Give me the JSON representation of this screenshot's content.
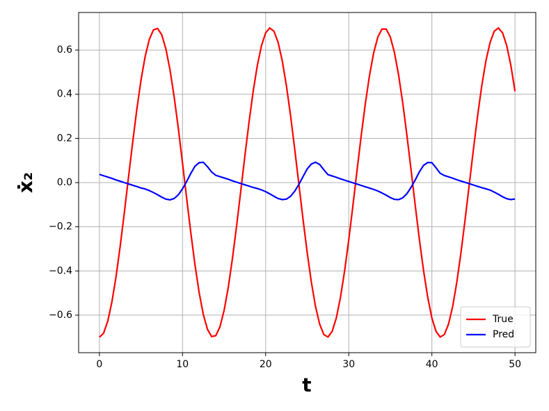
{
  "chart_data": {
    "type": "line",
    "xlabel": "t",
    "ylabel": "ẋ₂",
    "x": [
      0,
      0.5,
      1,
      1.5,
      2,
      2.5,
      3,
      3.5,
      4,
      4.5,
      5,
      5.5,
      6,
      6.5,
      7,
      7.5,
      8,
      8.5,
      9,
      9.5,
      10,
      10.5,
      11,
      11.5,
      12,
      12.5,
      13,
      13.5,
      14,
      14.5,
      15,
      15.5,
      16,
      16.5,
      17,
      17.5,
      18,
      18.5,
      19,
      19.5,
      20,
      20.5,
      21,
      21.5,
      22,
      22.5,
      23,
      23.5,
      24,
      24.5,
      25,
      25.5,
      26,
      26.5,
      27,
      27.5,
      28,
      28.5,
      29,
      29.5,
      30,
      30.5,
      31,
      31.5,
      32,
      32.5,
      33,
      33.5,
      34,
      34.5,
      35,
      35.5,
      36,
      36.5,
      37,
      37.5,
      38,
      38.5,
      39,
      39.5,
      40,
      40.5,
      41,
      41.5,
      42,
      42.5,
      43,
      43.5,
      44,
      44.5,
      45,
      45.5,
      46,
      46.5,
      47,
      47.5,
      48,
      48.5,
      49,
      49.5,
      50
    ],
    "series": [
      {
        "name": "True",
        "color": "#ff0000",
        "values": [
          -0.7,
          -0.682,
          -0.628,
          -0.541,
          -0.426,
          -0.288,
          -0.136,
          0.024,
          0.182,
          0.331,
          0.463,
          0.57,
          0.648,
          0.691,
          0.698,
          0.669,
          0.605,
          0.509,
          0.386,
          0.244,
          0.088,
          -0.072,
          -0.228,
          -0.373,
          -0.498,
          -0.597,
          -0.664,
          -0.697,
          -0.693,
          -0.653,
          -0.579,
          -0.475,
          -0.345,
          -0.198,
          -0.04,
          0.12,
          0.273,
          0.413,
          0.53,
          0.62,
          0.678,
          0.7,
          0.685,
          0.635,
          0.551,
          0.438,
          0.303,
          0.151,
          -0.008,
          -0.167,
          -0.317,
          -0.451,
          -0.561,
          -0.641,
          -0.688,
          -0.699,
          -0.674,
          -0.613,
          -0.52,
          -0.4,
          -0.259,
          -0.104,
          0.056,
          0.213,
          0.359,
          0.486,
          0.588,
          0.659,
          0.695,
          0.695,
          0.659,
          0.588,
          0.486,
          0.359,
          0.213,
          0.056,
          -0.104,
          -0.258,
          -0.399,
          -0.519,
          -0.613,
          -0.674,
          -0.699,
          -0.688,
          -0.641,
          -0.561,
          -0.451,
          -0.317,
          -0.167,
          -0.008,
          0.151,
          0.302,
          0.438,
          0.551,
          0.634,
          0.685,
          0.7,
          0.678,
          0.621,
          0.531,
          0.413
        ]
      },
      {
        "name": "Pred",
        "color": "#0000ff",
        "values": [
          0.037,
          0.031,
          0.025,
          0.019,
          0.012,
          0.006,
          0.0,
          -0.006,
          -0.012,
          -0.018,
          -0.024,
          -0.029,
          -0.036,
          -0.045,
          -0.055,
          -0.066,
          -0.075,
          -0.078,
          -0.072,
          -0.055,
          -0.028,
          0.005,
          0.042,
          0.074,
          0.09,
          0.092,
          0.072,
          0.048,
          0.033,
          0.027,
          0.021,
          0.015,
          0.008,
          0.002,
          -0.004,
          -0.01,
          -0.016,
          -0.022,
          -0.027,
          -0.033,
          -0.041,
          -0.051,
          -0.062,
          -0.072,
          -0.077,
          -0.075,
          -0.062,
          -0.039,
          -0.008,
          0.027,
          0.062,
          0.084,
          0.092,
          0.082,
          0.058,
          0.036,
          0.03,
          0.024,
          0.017,
          0.011,
          0.005,
          -0.001,
          -0.007,
          -0.013,
          -0.019,
          -0.025,
          -0.031,
          -0.038,
          -0.047,
          -0.057,
          -0.068,
          -0.076,
          -0.077,
          -0.069,
          -0.05,
          -0.021,
          0.012,
          0.049,
          0.078,
          0.091,
          0.09,
          0.067,
          0.042,
          0.032,
          0.026,
          0.02,
          0.013,
          0.007,
          0.001,
          -0.005,
          -0.011,
          -0.017,
          -0.023,
          -0.028,
          -0.034,
          -0.043,
          -0.053,
          -0.064,
          -0.073,
          -0.077,
          -0.074
        ]
      }
    ],
    "xlim": [
      -2.5,
      52.5
    ],
    "ylim": [
      -0.77,
      0.77
    ],
    "xticks": [
      0,
      10,
      20,
      30,
      40,
      50
    ],
    "yticks": [
      {
        "value": -0.6,
        "label": "−0.6"
      },
      {
        "value": -0.4,
        "label": "−0.4"
      },
      {
        "value": -0.2,
        "label": "−0.2"
      },
      {
        "value": 0,
        "label": "0.0"
      },
      0.2,
      0.4,
      0.6
    ],
    "grid": true,
    "legend": "lower right"
  }
}
